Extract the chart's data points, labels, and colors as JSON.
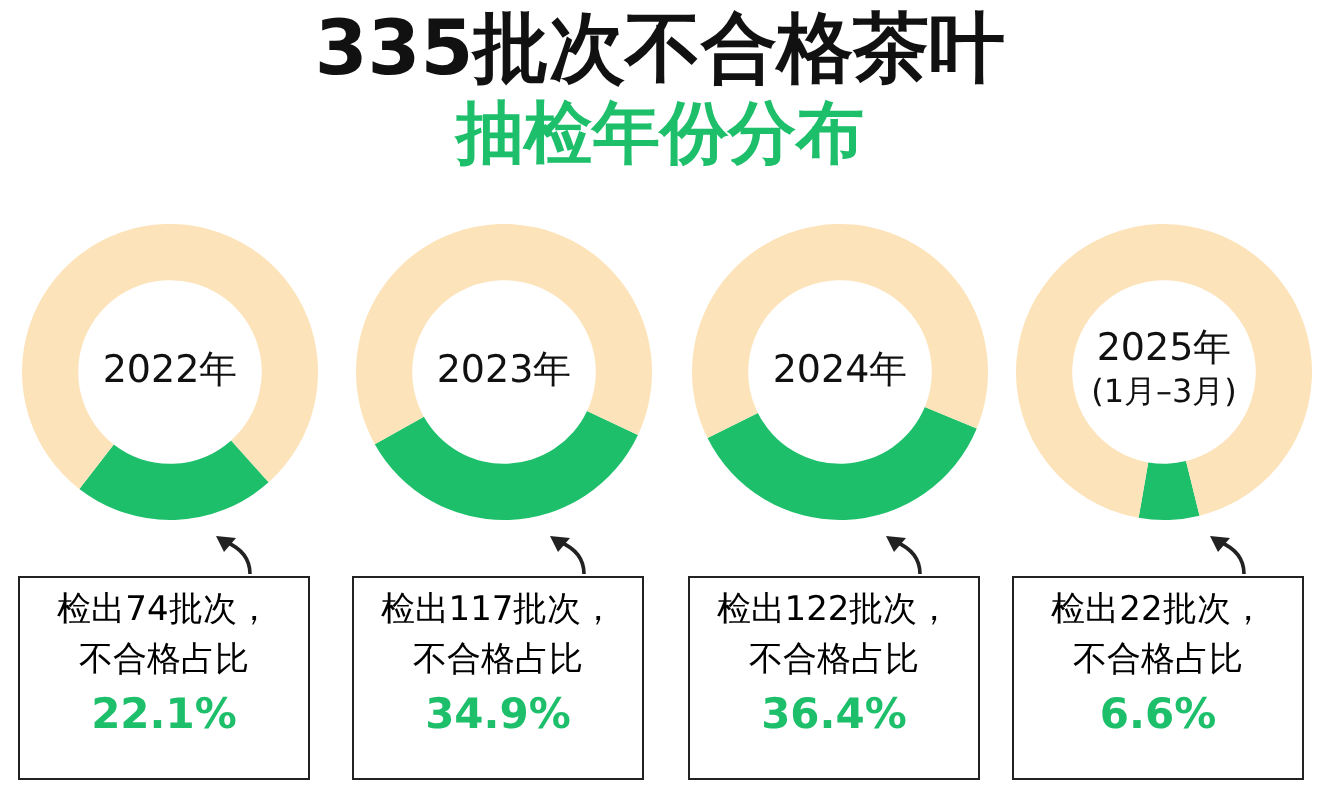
{
  "chart_data": [
    {
      "type": "donut",
      "title": "335批次不合格茶叶",
      "subtitle": "抽检年份分布",
      "categories": [
        null,
        null
      ],
      "values": [
        22.1,
        77.9
      ],
      "colors": [
        "#1dbf6b",
        "#fde3b9"
      ],
      "annotations": [
        "2022年",
        "检出74批次，",
        "不合格占比",
        "22.1%"
      ]
    },
    {
      "type": "donut",
      "categories": [
        null,
        null
      ],
      "values": [
        34.9,
        65.1
      ],
      "colors": [
        "#1dbf6b",
        "#fde3b9"
      ],
      "annotations": [
        "2023年",
        "检出117批次，",
        "不合格占比",
        "34.9%"
      ]
    },
    {
      "type": "donut",
      "categories": [
        null,
        null
      ],
      "values": [
        36.4,
        63.6
      ],
      "colors": [
        "#1dbf6b",
        "#fde3b9"
      ],
      "annotations": [
        "2024年",
        "检出122批次，",
        "不合格占比",
        "36.4%"
      ]
    },
    {
      "type": "donut",
      "categories": [
        null,
        null
      ],
      "values": [
        6.6,
        93.4
      ],
      "colors": [
        "#1dbf6b",
        "#fde3b9"
      ],
      "annotations": [
        "2025年",
        "(1月–3月)",
        "检出22批次，",
        "不合格占比",
        "6.6%"
      ]
    }
  ]
}
